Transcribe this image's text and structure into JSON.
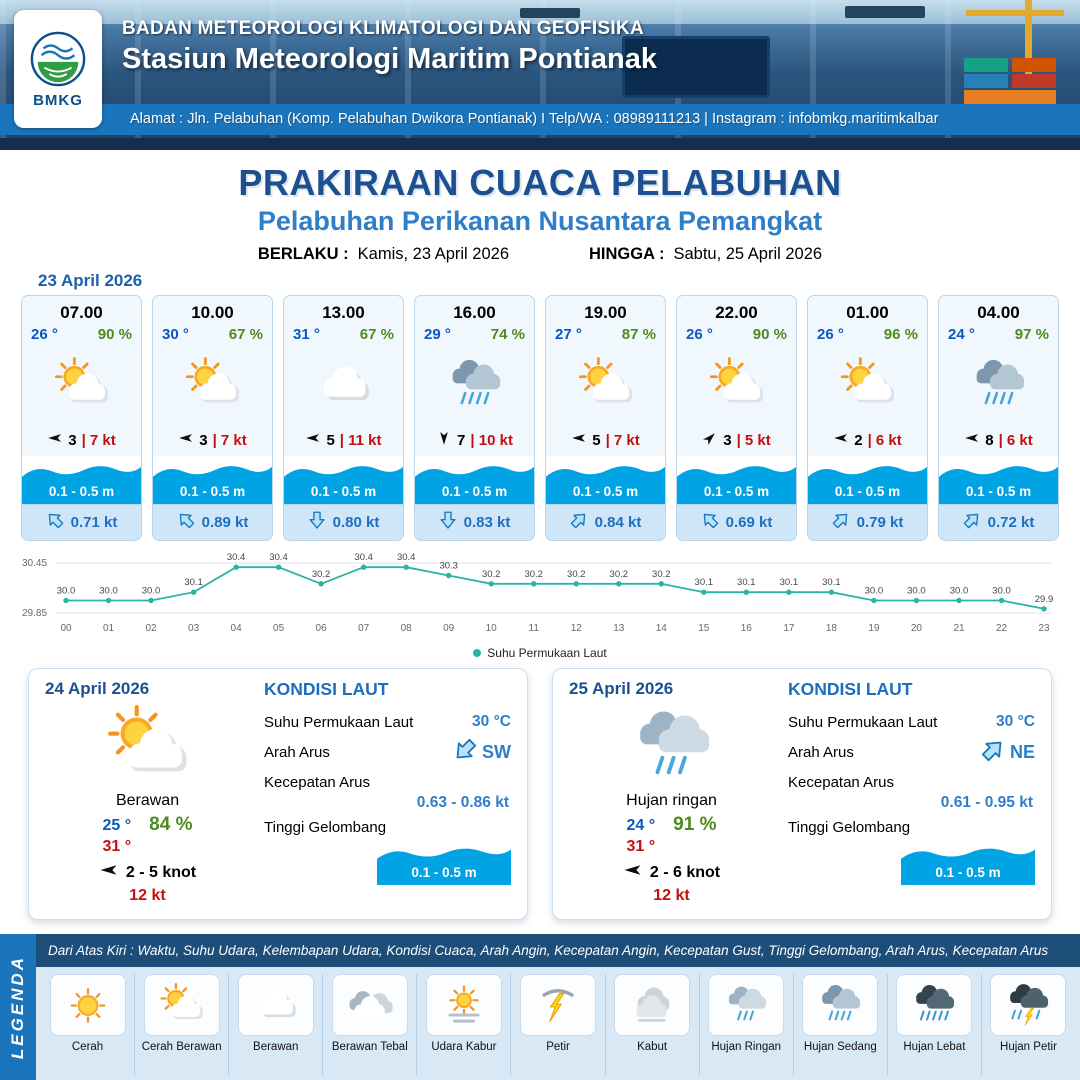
{
  "header": {
    "logo_text": "BMKG",
    "org_line1": "BADAN METEOROLOGI KLIMATOLOGI DAN GEOFISIKA",
    "org_line2": "Stasiun Meteorologi Maritim Pontianak",
    "address": "Alamat : Jln. Pelabuhan (Komp. Pelabuhan Dwikora Pontianak) I Telp/WA : 08989111213 | Instagram : infobmkg.maritimkalbar"
  },
  "title": {
    "main": "PRAKIRAAN CUACA PELABUHAN",
    "subtitle": "Pelabuhan Perikanan Nusantara Pemangkat",
    "berlaku_label": "BERLAKU :",
    "berlaku_value": "Kamis, 23 April 2026",
    "hingga_label": "HINGGA :",
    "hingga_value": "Sabtu, 25 April 2026"
  },
  "hourly": {
    "date": "23 April 2026",
    "cards": [
      {
        "time": "07.00",
        "temp": "26 °",
        "humidity": "90 %",
        "icon": "cerah-berawan",
        "wind_dir": "W",
        "wind_speed": "3",
        "gust": "| 7 kt",
        "wave": "0.1 - 0.5 m",
        "current_dir": "NW",
        "current_speed": "0.71 kt"
      },
      {
        "time": "10.00",
        "temp": "30 °",
        "humidity": "67 %",
        "icon": "cerah-berawan",
        "wind_dir": "W",
        "wind_speed": "3",
        "gust": "| 7 kt",
        "wave": "0.1 - 0.5 m",
        "current_dir": "NW",
        "current_speed": "0.89 kt"
      },
      {
        "time": "13.00",
        "temp": "31 °",
        "humidity": "67 %",
        "icon": "berawan",
        "wind_dir": "W",
        "wind_speed": "5",
        "gust": "| 11 kt",
        "wave": "0.1 - 0.5 m",
        "current_dir": "S",
        "current_speed": "0.80 kt"
      },
      {
        "time": "16.00",
        "temp": "29 °",
        "humidity": "74 %",
        "icon": "hujan-sedang",
        "wind_dir": "S",
        "wind_speed": "7",
        "gust": "| 10 kt",
        "wave": "0.1 - 0.5 m",
        "current_dir": "S",
        "current_speed": "0.83 kt"
      },
      {
        "time": "19.00",
        "temp": "27 °",
        "humidity": "87 %",
        "icon": "cerah-berawan",
        "wind_dir": "W",
        "wind_speed": "5",
        "gust": "| 7 kt",
        "wave": "0.1 - 0.5 m",
        "current_dir": "NE",
        "current_speed": "0.84 kt"
      },
      {
        "time": "22.00",
        "temp": "26 °",
        "humidity": "90 %",
        "icon": "cerah-berawan",
        "wind_dir": "NE",
        "wind_speed": "3",
        "gust": "| 5 kt",
        "wave": "0.1 - 0.5 m",
        "current_dir": "NW",
        "current_speed": "0.69 kt"
      },
      {
        "time": "01.00",
        "temp": "26 °",
        "humidity": "96 %",
        "icon": "cerah-berawan",
        "wind_dir": "W",
        "wind_speed": "2",
        "gust": "| 6 kt",
        "wave": "0.1 - 0.5 m",
        "current_dir": "NE",
        "current_speed": "0.79 kt"
      },
      {
        "time": "04.00",
        "temp": "24 °",
        "humidity": "97 %",
        "icon": "hujan-sedang",
        "wind_dir": "W",
        "wind_speed": "8",
        "gust": "| 6 kt",
        "wave": "0.1 - 0.5 m",
        "current_dir": "NE",
        "current_speed": "0.72 kt"
      }
    ]
  },
  "chart_data": {
    "type": "line",
    "legend_label": "Suhu Permukaan Laut",
    "x": [
      "00",
      "01",
      "02",
      "03",
      "04",
      "05",
      "06",
      "07",
      "08",
      "09",
      "10",
      "11",
      "12",
      "13",
      "14",
      "15",
      "16",
      "17",
      "18",
      "19",
      "20",
      "21",
      "22",
      "23"
    ],
    "values": [
      30.0,
      30.0,
      30.0,
      30.1,
      30.4,
      30.4,
      30.2,
      30.4,
      30.4,
      30.3,
      30.2,
      30.2,
      30.2,
      30.2,
      30.2,
      30.1,
      30.1,
      30.1,
      30.1,
      30.0,
      30.0,
      30.0,
      30.0,
      29.9
    ],
    "ylim": [
      29.85,
      30.45
    ],
    "xlabel": "",
    "ylabel": "",
    "grid": false,
    "legend_position": "bottom",
    "line_color": "#2bb5a0"
  },
  "daily": [
    {
      "date": "24 April 2026",
      "icon": "cerah-berawan",
      "condition": "Berawan",
      "temp_min": "25 °",
      "humidity": "84 %",
      "temp_max": "31 °",
      "wind_dir": "W",
      "wind": "2  - 5 knot",
      "gust": "12 kt",
      "sea": {
        "title": "KONDISI LAUT",
        "sst_label": "Suhu Permukaan Laut",
        "sst": "30 °C",
        "dir_label": "Arah Arus",
        "dir": "SW",
        "speed_label": "Kecepatan Arus",
        "speed": "0.63 - 0.86 kt",
        "wave_label": "Tinggi Gelombang",
        "wave": "0.1 - 0.5 m"
      }
    },
    {
      "date": "25 April 2026",
      "icon": "hujan-ringan",
      "condition": "Hujan ringan",
      "temp_min": "24 °",
      "humidity": "91 %",
      "temp_max": "31 °",
      "wind_dir": "W",
      "wind": "2  - 6 knot",
      "gust": "12 kt",
      "sea": {
        "title": "KONDISI LAUT",
        "sst_label": "Suhu Permukaan Laut",
        "sst": "30 °C",
        "dir_label": "Arah Arus",
        "dir": "NE",
        "speed_label": "Kecepatan Arus",
        "speed": "0.61 - 0.95 kt",
        "wave_label": "Tinggi Gelombang",
        "wave": "0.1 - 0.5 m"
      }
    }
  ],
  "legend": {
    "side_label": "LEGENDA",
    "note": "Dari Atas Kiri : Waktu, Suhu Udara, Kelembapan Udara, Kondisi Cuaca, Arah Angin, Kecepatan Angin, Kecepatan Gust, Tinggi Gelombang, Arah Arus, Kecepatan Arus",
    "items": [
      {
        "label": "Cerah",
        "icon": "cerah"
      },
      {
        "label": "Cerah Berawan",
        "icon": "cerah-berawan"
      },
      {
        "label": "Berawan",
        "icon": "berawan"
      },
      {
        "label": "Berawan Tebal",
        "icon": "berawan-tebal"
      },
      {
        "label": "Udara Kabur",
        "icon": "udara-kabur"
      },
      {
        "label": "Petir",
        "icon": "petir"
      },
      {
        "label": "Kabut",
        "icon": "kabut"
      },
      {
        "label": "Hujan Ringan",
        "icon": "hujan-ringan"
      },
      {
        "label": "Hujan Sedang",
        "icon": "hujan-sedang"
      },
      {
        "label": "Hujan Lebat",
        "icon": "hujan-lebat"
      },
      {
        "label": "Hujan Petir",
        "icon": "hujan-petir"
      }
    ]
  },
  "colors": {
    "accent_blue": "#1b75bc",
    "dark_blue": "#1d5091",
    "subtitle_blue": "#2f7ec7",
    "temp_blue": "#0a57c2",
    "humidity_green": "#4e8a1e",
    "gust_red": "#c40f0f",
    "wave_blue": "#00a3e4",
    "sst_line": "#2bb5a0"
  }
}
